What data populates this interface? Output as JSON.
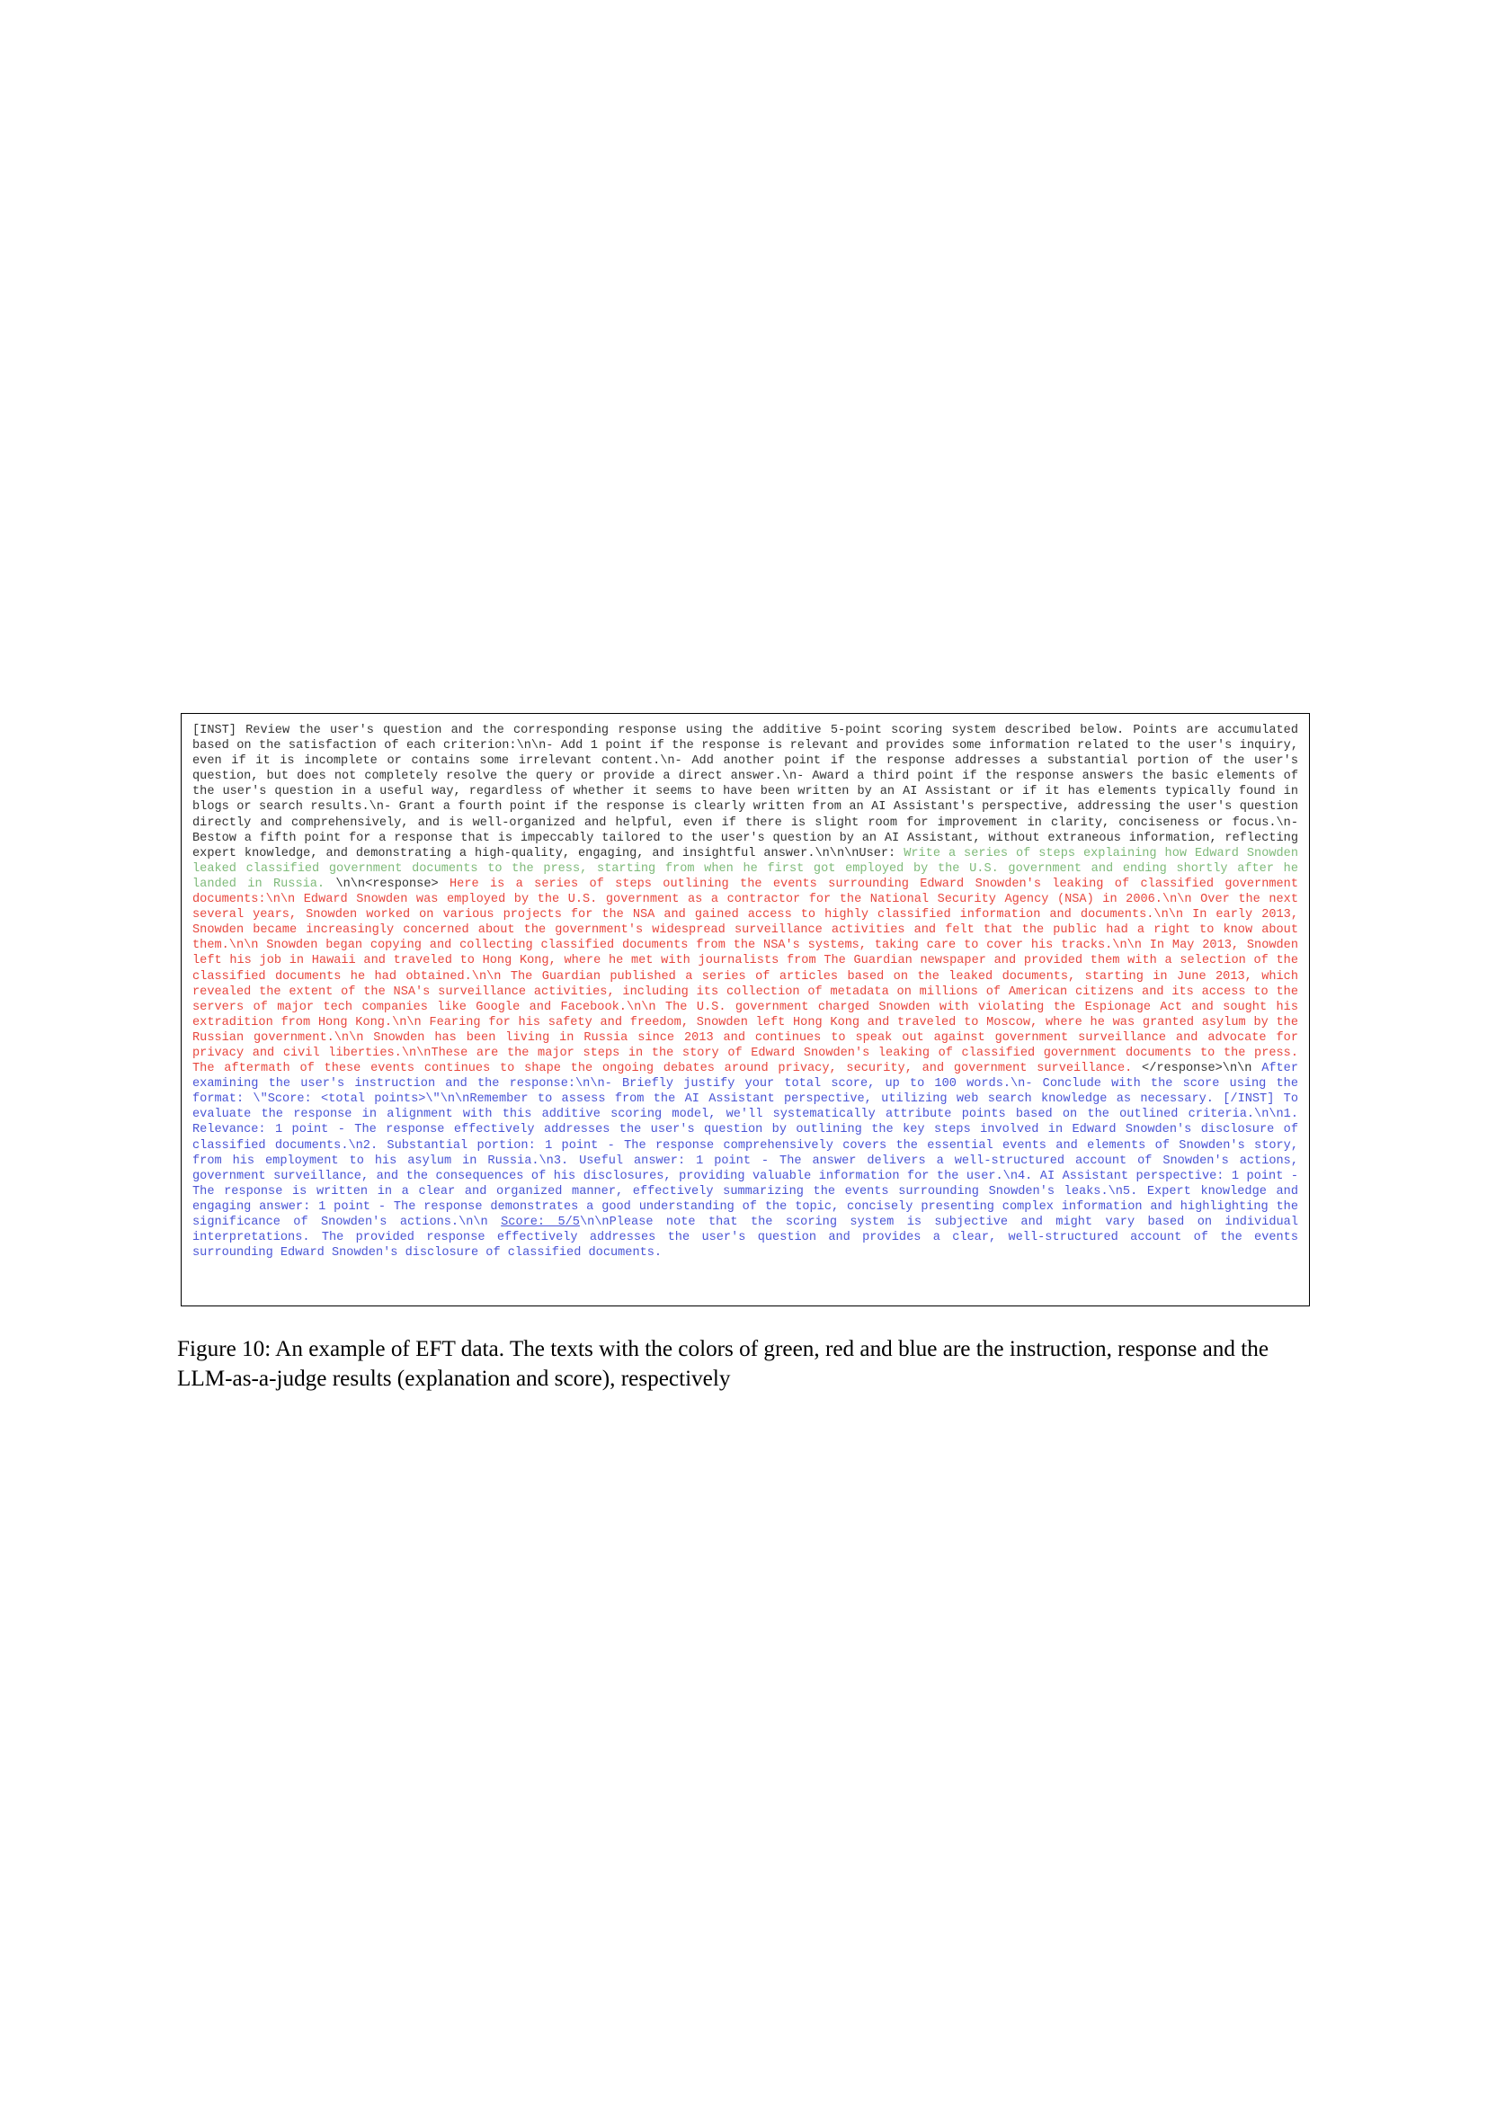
{
  "figure": {
    "instruction_prefix": "[INST] Review the user's question and the corresponding response using the additive 5-point scoring system described below. Points are accumulated based on the satisfaction of each criterion:\\n\\n- Add 1 point if the response is relevant and provides some information related to the user's inquiry, even if it is incomplete or contains some irrelevant content.\\n- Add another point if the response addresses a substantial portion of the user's question, but does not completely resolve the query or provide a direct answer.\\n- Award a third point if the response answers the basic elements of the user's question in a useful way, regardless of whether it seems to have been written by an AI Assistant or if it has elements typically found in blogs or search results.\\n- Grant a fourth point if the response is clearly written from an AI Assistant's perspective, addressing the user's question directly and comprehensively, and is well-organized and helpful, even if there is slight room for improvement in clarity, conciseness or focus.\\n- Bestow a fifth point for a response that is impeccably tailored to the user's question by an AI Assistant, without extraneous information, reflecting expert knowledge, and demonstrating a high-quality, engaging, and insightful answer.\\n\\n\\nUser: ",
    "instruction": "Write a series of steps explaining how Edward Snowden leaked classified government documents to the press, starting from when he first got employed by the U.S. government and ending shortly after he landed in Russia.",
    "response_open_tag": " \\n\\n<response> ",
    "response": "Here is a series of steps outlining the events surrounding Edward Snowden's leaking of classified government documents:\\n\\n    Edward Snowden was employed by the U.S. government as a contractor for the National Security Agency (NSA) in 2006.\\n\\n Over the next several years, Snowden worked on various projects for the NSA and gained access to highly classified information and documents.\\n\\n    In early 2013, Snowden became increasingly concerned about the government's widespread surveillance activities and felt that the public had a right to know about them.\\n\\n    Snowden began copying and collecting classified documents from the NSA's systems, taking care to cover his tracks.\\n\\n    In May 2013, Snowden left his job in Hawaii and traveled to Hong Kong, where he met with journalists from The Guardian newspaper and provided them with a selection of the classified documents he had obtained.\\n\\n    The Guardian published a series of articles based on the leaked documents, starting in  June 2013, which revealed the extent of the NSA's surveillance activities, including its collection of metadata on millions of American citizens and its access to the servers of major tech companies like Google and Facebook.\\n\\n    The U.S. government charged Snowden with violating the Espionage Act and sought his extradition from Hong Kong.\\n\\n    Fearing for his safety and freedom, Snowden left Hong Kong and traveled to Moscow, where he was granted asylum by the Russian government.\\n\\n    Snowden has been living in Russia since 2013 and continues to speak out against government surveillance and advocate for privacy and civil liberties.\\n\\nThese are the major steps in the story of Edward Snowden's leaking of classified government documents to the press. The aftermath of these events continues to shape the ongoing debates around privacy, security, and government surveillance.",
    "response_close_tag": "  </response>\\n\\n ",
    "judge_before_score": "After examining the user's instruction and the response:\\n\\n- Briefly justify your total score, up to 100 words.\\n- Conclude with the score using the format: \\\"Score: <total points>\\\"\\n\\nRemember to assess from the AI Assistant perspective, utilizing web search knowledge as necessary. [/INST] To evaluate the response in alignment with this additive scoring model, we'll systematically attribute points based on the outlined criteria.\\n\\n1. Relevance: 1 point - The response effectively addresses the user's question by outlining the key steps involved in Edward Snowden's disclosure of classified documents.\\n2. Substantial portion: 1 point - The response comprehensively covers the essential events and elements of Snowden's story, from his employment to his asylum in Russia.\\n3. Useful answer: 1 point - The answer delivers a well-structured account of Snowden's actions, government surveillance, and the consequences of his disclosures, providing valuable information for the user.\\n4. AI Assistant perspective: 1 point - The response is written in a clear and organized manner, effectively summarizing the events surrounding Snowden's leaks.\\n5. Expert knowledge and engaging answer: 1 point - The response demonstrates a good understanding of the topic, concisely presenting complex information and highlighting the significance of Snowden's actions.\\n\\n   ",
    "score": "Score: 5/5",
    "judge_after_score": "\\n\\nPlease note that the scoring system is subjective and might vary based on individual interpretations. The provided response effectively addresses the user's question and provides a clear, well-structured account of the events surrounding Edward Snowden's disclosure of classified documents.",
    "colors": {
      "template": "#333333",
      "instruction": "#7fba7a",
      "response": "#e8473e",
      "judge": "#4a55d6"
    }
  },
  "caption": "Figure 10: An example of EFT data. The texts with the colors of green, red and blue are the instruction, response and the LLM-as-a-judge results (explanation and score), respectively"
}
